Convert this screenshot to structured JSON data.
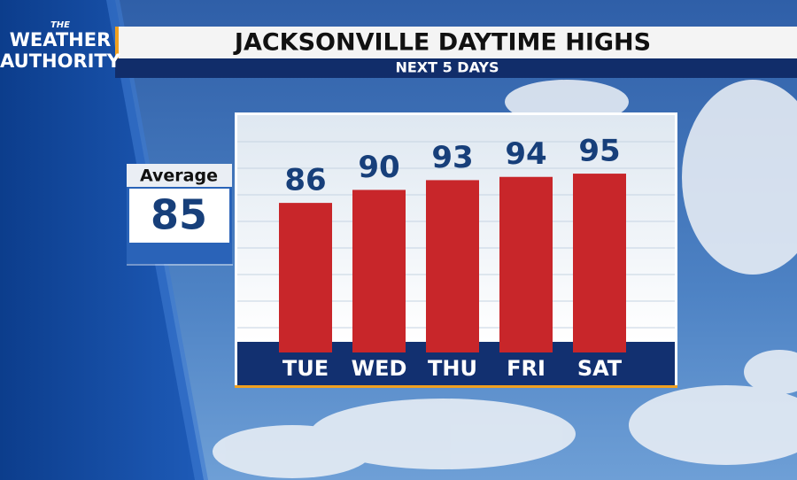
{
  "chart_data": {
    "type": "bar",
    "title": "JACKSONVILLE DAYTIME HIGHS",
    "subtitle": "NEXT 5 DAYS",
    "logo": [
      "THE",
      "WEATHER",
      "AUTHORITY"
    ],
    "average": {
      "label": "Average",
      "value": 85
    },
    "categories": [
      "TUE",
      "WED",
      "THU",
      "FRI",
      "SAT"
    ],
    "values": [
      86,
      90,
      93,
      94,
      95
    ],
    "color": "#c8262a",
    "ylim": [
      40,
      110
    ]
  }
}
